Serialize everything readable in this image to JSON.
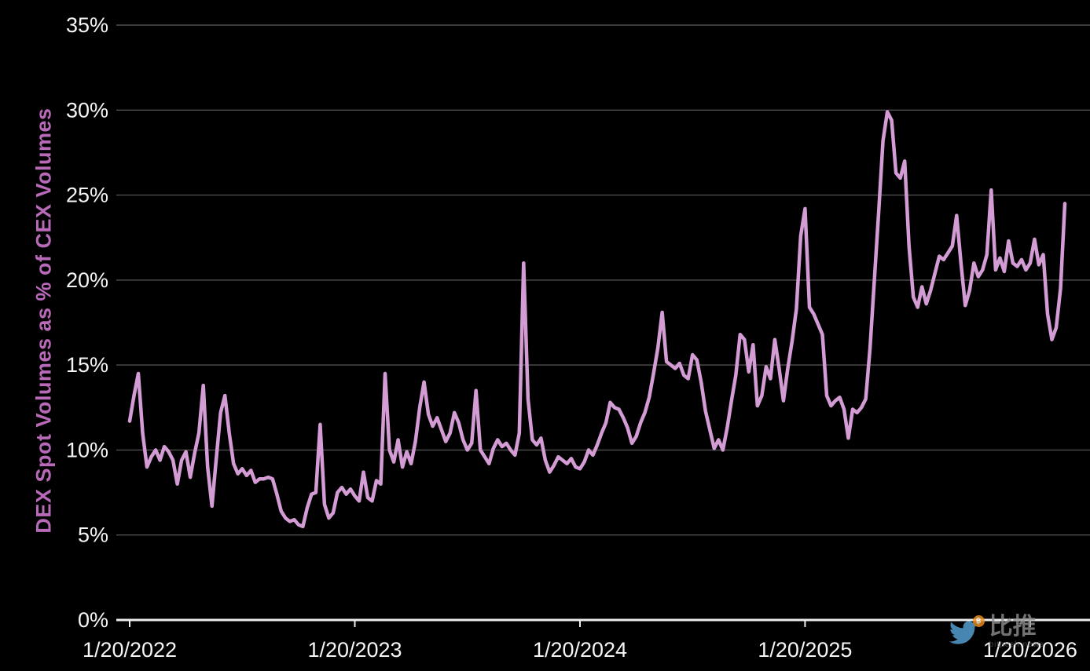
{
  "chart_data": {
    "type": "line",
    "title": "",
    "xlabel": "",
    "ylabel": "DEX Spot Volumes as % of CEX Volumes",
    "ylim": [
      0,
      35
    ],
    "grid": true,
    "legend": false,
    "y_ticks": [
      0,
      5,
      10,
      15,
      20,
      25,
      30,
      35
    ],
    "y_tick_labels": [
      "0%",
      "5%",
      "10%",
      "15%",
      "20%",
      "25%",
      "30%",
      "35%"
    ],
    "x_tick_labels": [
      "1/20/2022",
      "1/20/2023",
      "1/20/2024",
      "1/20/2025",
      "1/20/2026"
    ],
    "x_tick_indices": [
      0,
      52,
      104,
      156,
      208
    ],
    "x_unit": "weekly",
    "colors": {
      "line": "#d49cd4",
      "grid": "#505050",
      "axis": "#ededed",
      "labels": "#f5f5f5",
      "ylabel": "#b869b8",
      "background": "#000000"
    },
    "series": [
      {
        "name": "DEX Spot Volumes as % of CEX Volumes",
        "values": [
          11.7,
          13.2,
          14.5,
          11.0,
          9.0,
          9.6,
          10.0,
          9.4,
          10.2,
          9.9,
          9.4,
          8.0,
          9.4,
          9.9,
          8.4,
          9.8,
          11.0,
          13.8,
          9.0,
          6.7,
          9.5,
          12.2,
          13.2,
          11.0,
          9.2,
          8.6,
          8.9,
          8.5,
          8.8,
          8.1,
          8.3,
          8.3,
          8.4,
          8.3,
          7.4,
          6.4,
          6.0,
          5.8,
          5.9,
          5.6,
          5.5,
          6.6,
          7.4,
          7.5,
          11.5,
          6.8,
          6.0,
          6.3,
          7.5,
          7.8,
          7.4,
          7.7,
          7.3,
          7.0,
          8.7,
          7.2,
          7.0,
          8.2,
          8.0,
          14.5,
          10.0,
          9.3,
          10.6,
          9.0,
          9.9,
          9.2,
          10.5,
          12.5,
          14.0,
          12.1,
          11.4,
          11.9,
          11.2,
          10.5,
          11.0,
          12.2,
          11.6,
          10.6,
          10.0,
          10.4,
          13.5,
          10.0,
          9.6,
          9.2,
          10.1,
          10.6,
          10.2,
          10.4,
          10.0,
          9.7,
          11.0,
          21.0,
          13.0,
          10.6,
          10.3,
          10.7,
          9.4,
          8.7,
          9.1,
          9.6,
          9.4,
          9.2,
          9.5,
          9.0,
          8.9,
          9.3,
          10.0,
          9.7,
          10.3,
          11.0,
          11.6,
          12.8,
          12.5,
          12.4,
          11.9,
          11.3,
          10.4,
          10.8,
          11.6,
          12.2,
          13.1,
          14.5,
          16.0,
          18.1,
          15.2,
          15.0,
          14.8,
          15.1,
          14.4,
          14.2,
          15.6,
          15.3,
          14.0,
          12.3,
          11.2,
          10.1,
          10.6,
          10.0,
          11.3,
          12.9,
          14.4,
          16.8,
          16.5,
          14.6,
          16.2,
          12.6,
          13.2,
          14.9,
          14.2,
          16.5,
          14.8,
          12.9,
          14.8,
          16.4,
          18.3,
          22.6,
          24.2,
          18.4,
          18.0,
          17.4,
          16.8,
          13.2,
          12.6,
          12.9,
          13.1,
          12.4,
          10.7,
          12.4,
          12.2,
          12.5,
          13.0,
          16.0,
          20.0,
          24.0,
          28.2,
          29.9,
          29.4,
          26.3,
          26.0,
          27.0,
          22.0,
          19.0,
          18.4,
          19.6,
          18.6,
          19.4,
          20.4,
          21.4,
          21.2,
          21.6,
          22.0,
          23.8,
          21.0,
          18.5,
          19.4,
          21.0,
          20.2,
          20.6,
          21.5,
          25.3,
          20.6,
          21.3,
          20.5,
          22.3,
          21.0,
          20.8,
          21.2,
          20.6,
          21.0,
          22.4,
          20.9,
          21.5,
          18.0,
          16.5,
          17.2,
          19.5,
          24.5
        ]
      }
    ]
  },
  "watermark": {
    "brand": "比推",
    "subtext": "bitpush.news",
    "bird_color": "#59a8dc",
    "coin_color": "#f7931a",
    "coin_symbol": "฿"
  }
}
